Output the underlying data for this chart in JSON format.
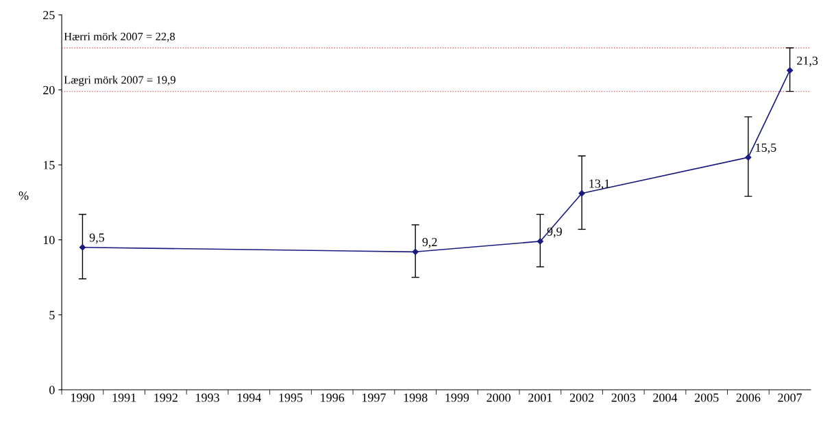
{
  "chart_data": {
    "type": "line",
    "ylabel": "%",
    "categories": [
      "1990",
      "1991",
      "1992",
      "1993",
      "1994",
      "1995",
      "1996",
      "1997",
      "1998",
      "1999",
      "2000",
      "2001",
      "2002",
      "2003",
      "2004",
      "2005",
      "2006",
      "2007"
    ],
    "series": [
      {
        "color": "#1a1a80",
        "values": [
          9.5,
          null,
          null,
          null,
          null,
          null,
          null,
          null,
          9.2,
          null,
          null,
          9.9,
          13.1,
          null,
          null,
          null,
          15.5,
          21.3
        ],
        "errors": [
          [
            7.4,
            11.7
          ],
          null,
          null,
          null,
          null,
          null,
          null,
          null,
          [
            7.5,
            11.0
          ],
          null,
          null,
          [
            8.2,
            11.7
          ],
          [
            10.7,
            15.6
          ],
          null,
          null,
          null,
          [
            12.9,
            18.2
          ],
          [
            19.9,
            22.8
          ]
        ],
        "value_labels": [
          "9,5",
          null,
          null,
          null,
          null,
          null,
          null,
          null,
          "9,2",
          null,
          null,
          "9,9",
          "13,1",
          null,
          null,
          null,
          "15,5",
          "21,3"
        ]
      }
    ],
    "ref_lines": [
      {
        "axis": "y",
        "value": 22.8,
        "label": "Hærri mörk 2007 = 22,8",
        "color": "#e06060",
        "line_style": "dotted"
      },
      {
        "axis": "y",
        "value": 19.9,
        "label": "Lægri mörk 2007 = 19,9",
        "color": "#e06060",
        "line_style": "dotted"
      }
    ],
    "ylim": [
      0,
      25
    ],
    "yticks": [
      0,
      5,
      10,
      15,
      20,
      25
    ],
    "grid": false,
    "marker": "diamond",
    "line_style": "solid"
  }
}
